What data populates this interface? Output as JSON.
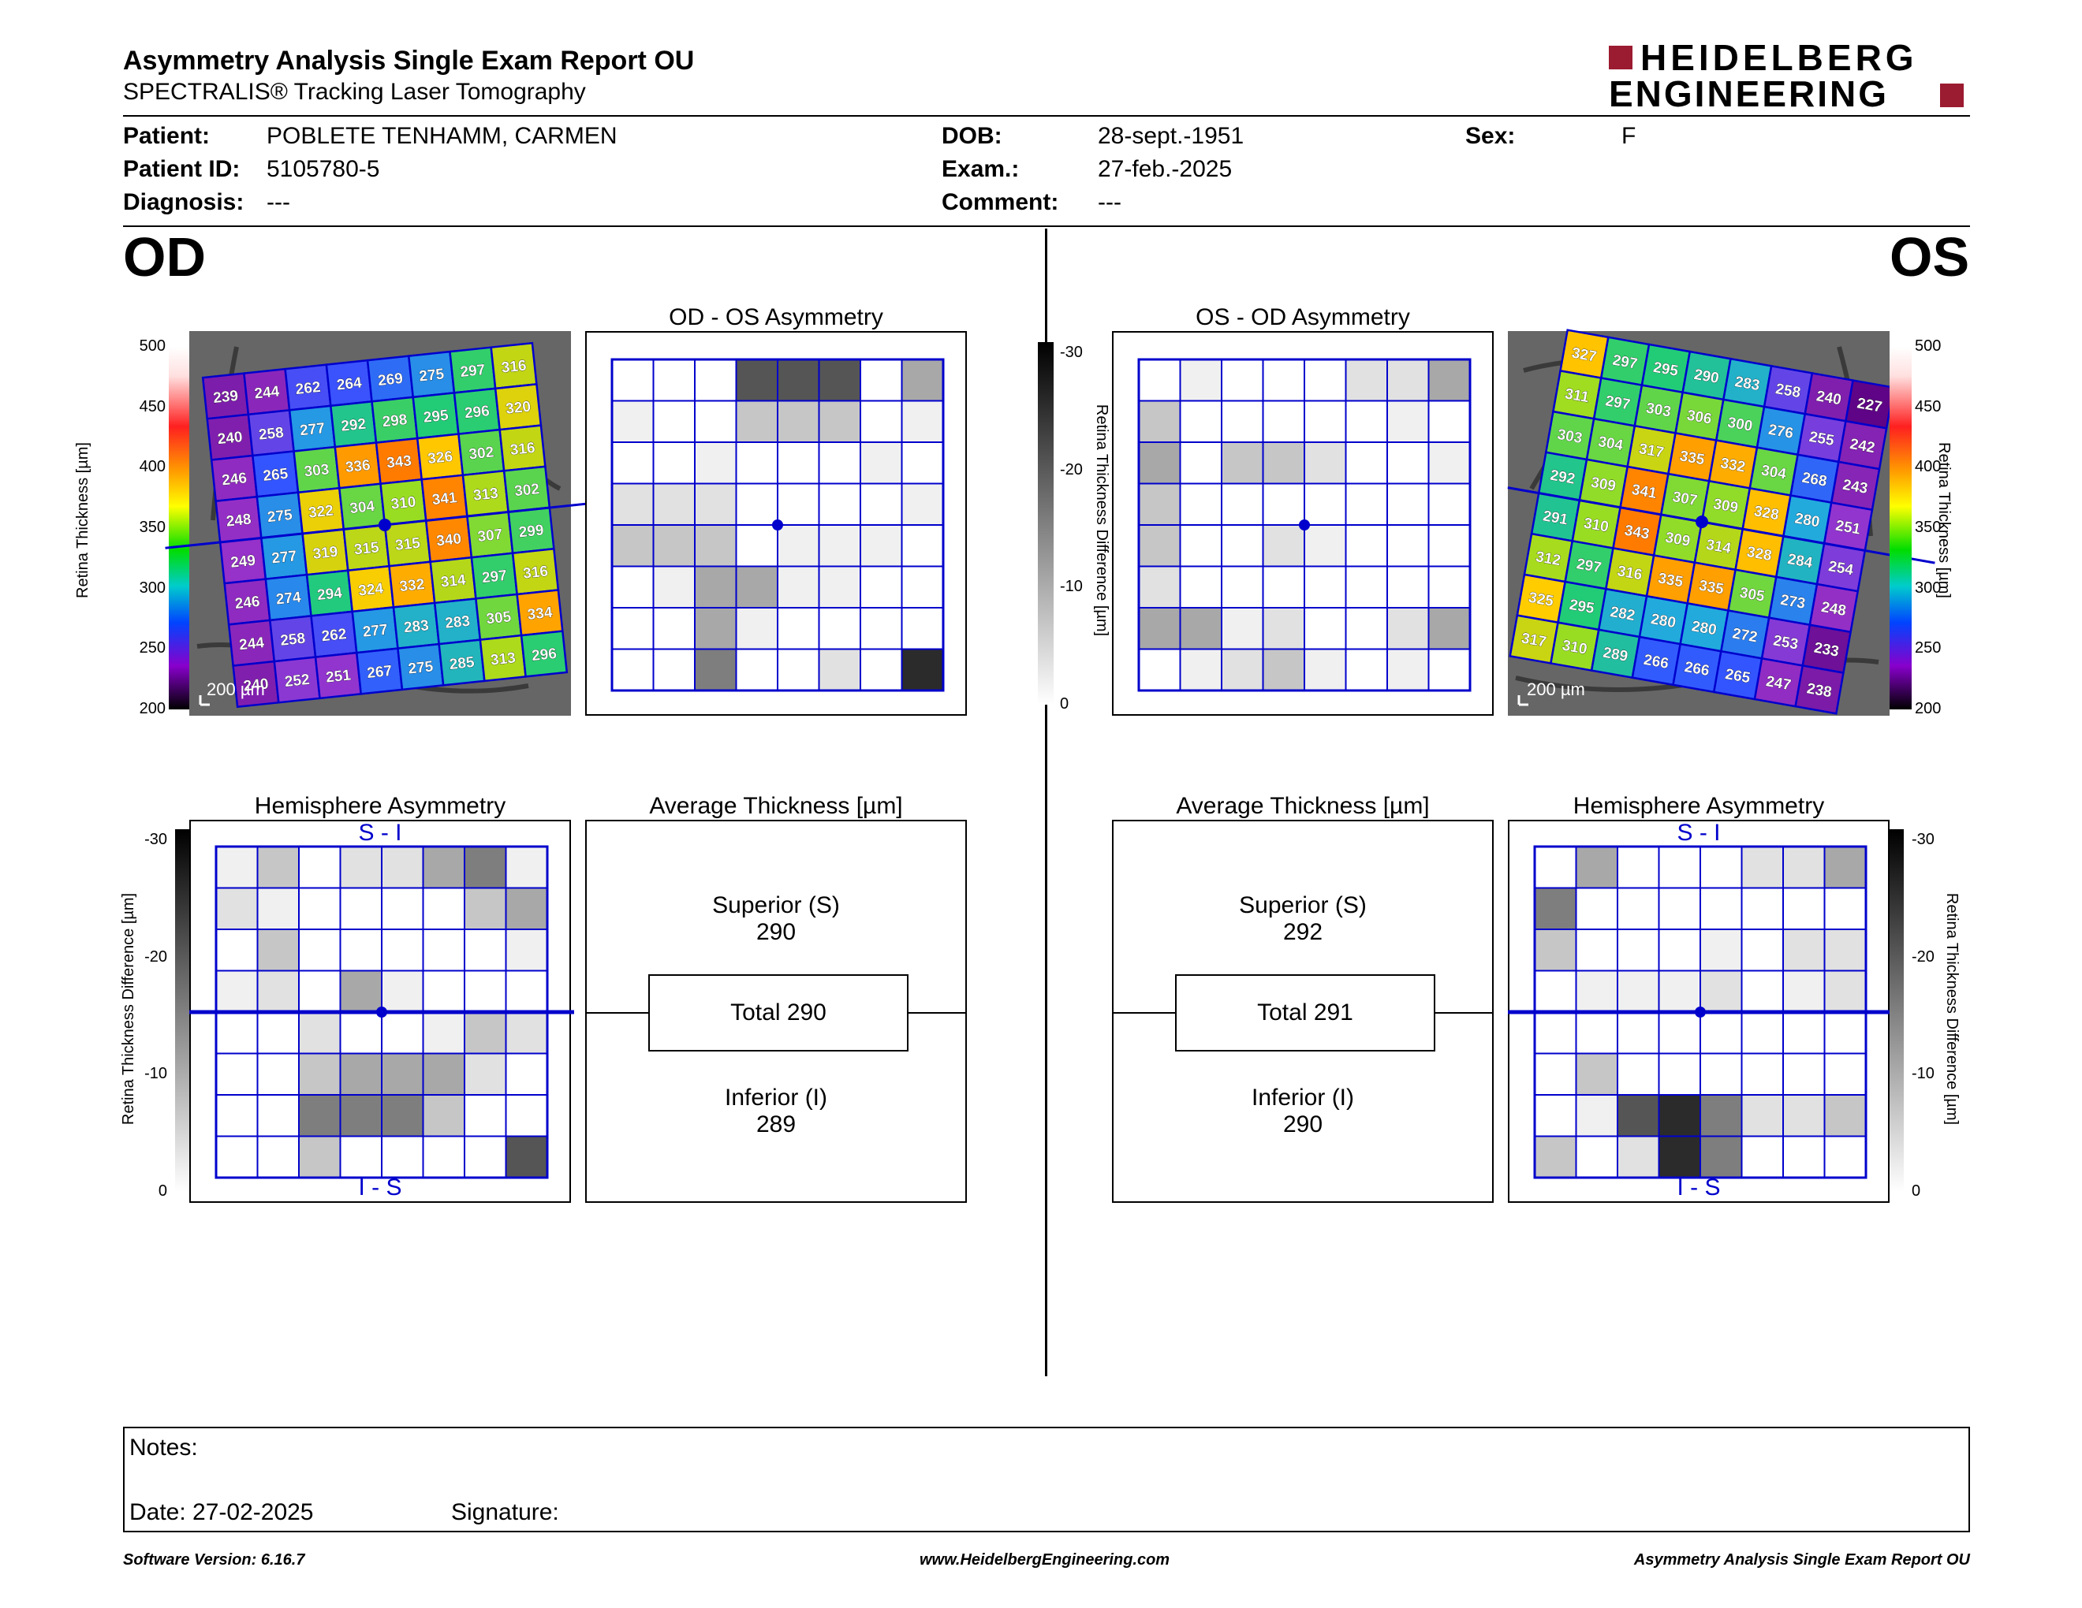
{
  "header": {
    "title": "Asymmetry Analysis Single Exam Report OU",
    "subtitle": "SPECTRALIS® Tracking Laser Tomography",
    "logo_line1": "HEIDELBERG",
    "logo_line2": "ENGINEERING"
  },
  "patient": {
    "patient_label": "Patient:",
    "patient_value": "POBLETE TENHAMM, CARMEN",
    "id_label": "Patient ID:",
    "id_value": "5105780-5",
    "diag_label": "Diagnosis:",
    "diag_value": "---",
    "dob_label": "DOB:",
    "dob_value": "28-sept.-1951",
    "exam_label": "Exam.:",
    "exam_value": "27-feb.-2025",
    "comment_label": "Comment:",
    "comment_value": "---",
    "sex_label": "Sex:",
    "sex_value": "F"
  },
  "eyes": {
    "od": "OD",
    "os": "OS"
  },
  "colors": {
    "grid": "#0000cc",
    "brand": "#9b1b30",
    "gray_levels": [
      "#ffffff",
      "#f0f0f0",
      "#e1e1e1",
      "#c6c6c6",
      "#a8a8a8",
      "#7e7e7e",
      "#555555",
      "#2b2b2b"
    ]
  },
  "titles": {
    "od_os_asym": "OD - OS Asymmetry",
    "os_od_asym": "OS - OD Asymmetry",
    "hemi_asym": "Hemisphere Asymmetry",
    "avg_thick": "Average Thickness [µm]",
    "hemi_top": "S - I",
    "hemi_bottom": "I - S"
  },
  "scales": {
    "thickness_label": "Retina Thickness [µm]",
    "thickness_ticks": [
      "500",
      "450",
      "400",
      "350",
      "300",
      "250",
      "200"
    ],
    "diff_label": "Retina Thickness Difference [µm]",
    "diff_ticks": [
      "-30",
      "-20",
      "-10",
      "0"
    ],
    "scale_bar": "200 µm"
  },
  "od_thickness": [
    [
      239,
      244,
      262,
      264,
      269,
      275,
      297,
      316
    ],
    [
      240,
      258,
      277,
      292,
      298,
      295,
      296,
      320
    ],
    [
      246,
      265,
      303,
      336,
      343,
      326,
      302,
      316
    ],
    [
      248,
      275,
      322,
      304,
      310,
      341,
      313,
      302
    ],
    [
      249,
      277,
      319,
      315,
      315,
      340,
      307,
      299
    ],
    [
      246,
      274,
      294,
      324,
      332,
      314,
      297,
      316
    ],
    [
      244,
      258,
      262,
      277,
      283,
      283,
      305,
      334
    ],
    [
      240,
      252,
      251,
      267,
      275,
      285,
      313,
      296
    ]
  ],
  "os_thickness": [
    [
      327,
      297,
      295,
      290,
      283,
      258,
      240,
      227
    ],
    [
      311,
      297,
      303,
      306,
      300,
      276,
      255,
      242
    ],
    [
      303,
      304,
      317,
      335,
      332,
      304,
      268,
      243
    ],
    [
      292,
      309,
      341,
      307,
      309,
      328,
      280,
      251
    ],
    [
      291,
      310,
      343,
      309,
      314,
      328,
      284,
      254
    ],
    [
      312,
      297,
      316,
      335,
      335,
      305,
      273,
      248
    ],
    [
      325,
      295,
      282,
      280,
      280,
      272,
      253,
      233
    ],
    [
      317,
      310,
      289,
      266,
      266,
      265,
      247,
      238
    ]
  ],
  "od_os_grid": [
    [
      0,
      0,
      0,
      6,
      6,
      6,
      0,
      4
    ],
    [
      1,
      0,
      0,
      3,
      3,
      3,
      0,
      1
    ],
    [
      0,
      0,
      1,
      0,
      0,
      0,
      1,
      0
    ],
    [
      2,
      2,
      2,
      0,
      0,
      0,
      0,
      1
    ],
    [
      3,
      3,
      3,
      0,
      1,
      1,
      1,
      0
    ],
    [
      0,
      1,
      4,
      4,
      1,
      1,
      0,
      0
    ],
    [
      0,
      0,
      4,
      1,
      0,
      0,
      0,
      0
    ],
    [
      0,
      0,
      5,
      0,
      0,
      2,
      0,
      7
    ]
  ],
  "os_od_grid": [
    [
      0,
      1,
      0,
      0,
      0,
      2,
      2,
      4
    ],
    [
      3,
      0,
      0,
      0,
      0,
      0,
      1,
      0
    ],
    [
      4,
      0,
      3,
      3,
      2,
      0,
      0,
      1
    ],
    [
      3,
      0,
      0,
      0,
      0,
      0,
      0,
      0
    ],
    [
      3,
      0,
      0,
      2,
      1,
      0,
      0,
      0
    ],
    [
      2,
      0,
      0,
      0,
      0,
      0,
      0,
      0
    ],
    [
      4,
      4,
      1,
      2,
      0,
      0,
      2,
      4
    ],
    [
      0,
      1,
      2,
      3,
      1,
      0,
      1,
      0
    ]
  ],
  "od_hemi_grid": [
    [
      1,
      3,
      0,
      2,
      2,
      4,
      5,
      1
    ],
    [
      2,
      1,
      0,
      0,
      0,
      0,
      3,
      4
    ],
    [
      0,
      3,
      0,
      0,
      0,
      0,
      0,
      1
    ],
    [
      1,
      2,
      0,
      4,
      1,
      0,
      0,
      0
    ],
    [
      0,
      0,
      2,
      0,
      0,
      1,
      3,
      2
    ],
    [
      0,
      0,
      3,
      4,
      4,
      4,
      2,
      0
    ],
    [
      0,
      0,
      5,
      5,
      5,
      3,
      0,
      0
    ],
    [
      0,
      0,
      3,
      0,
      0,
      0,
      0,
      6
    ]
  ],
  "os_hemi_grid": [
    [
      0,
      4,
      0,
      0,
      0,
      2,
      2,
      4
    ],
    [
      5,
      0,
      0,
      0,
      0,
      0,
      0,
      0
    ],
    [
      3,
      0,
      0,
      0,
      1,
      0,
      2,
      2
    ],
    [
      0,
      1,
      1,
      1,
      2,
      0,
      1,
      2
    ],
    [
      0,
      0,
      0,
      0,
      0,
      0,
      0,
      0
    ],
    [
      0,
      3,
      0,
      0,
      0,
      0,
      0,
      0
    ],
    [
      0,
      1,
      6,
      7,
      5,
      2,
      2,
      3
    ],
    [
      3,
      0,
      2,
      7,
      5,
      0,
      0,
      0
    ]
  ],
  "od_avg": {
    "superior_label": "Superior (S)",
    "superior_value": "290",
    "total_label": "Total 290",
    "inferior_label": "Inferior (I)",
    "inferior_value": "289"
  },
  "os_avg": {
    "superior_label": "Superior (S)",
    "superior_value": "292",
    "total_label": "Total 291",
    "inferior_label": "Inferior (I)",
    "inferior_value": "290"
  },
  "notes": {
    "notes_label": "Notes:",
    "date_label": "Date: 27-02-2025",
    "signature_label": "Signature:"
  },
  "footer": {
    "software": "Software Version: 6.16.7",
    "website": "www.HeidelbergEngineering.com",
    "report": "Asymmetry Analysis Single Exam Report OU"
  }
}
